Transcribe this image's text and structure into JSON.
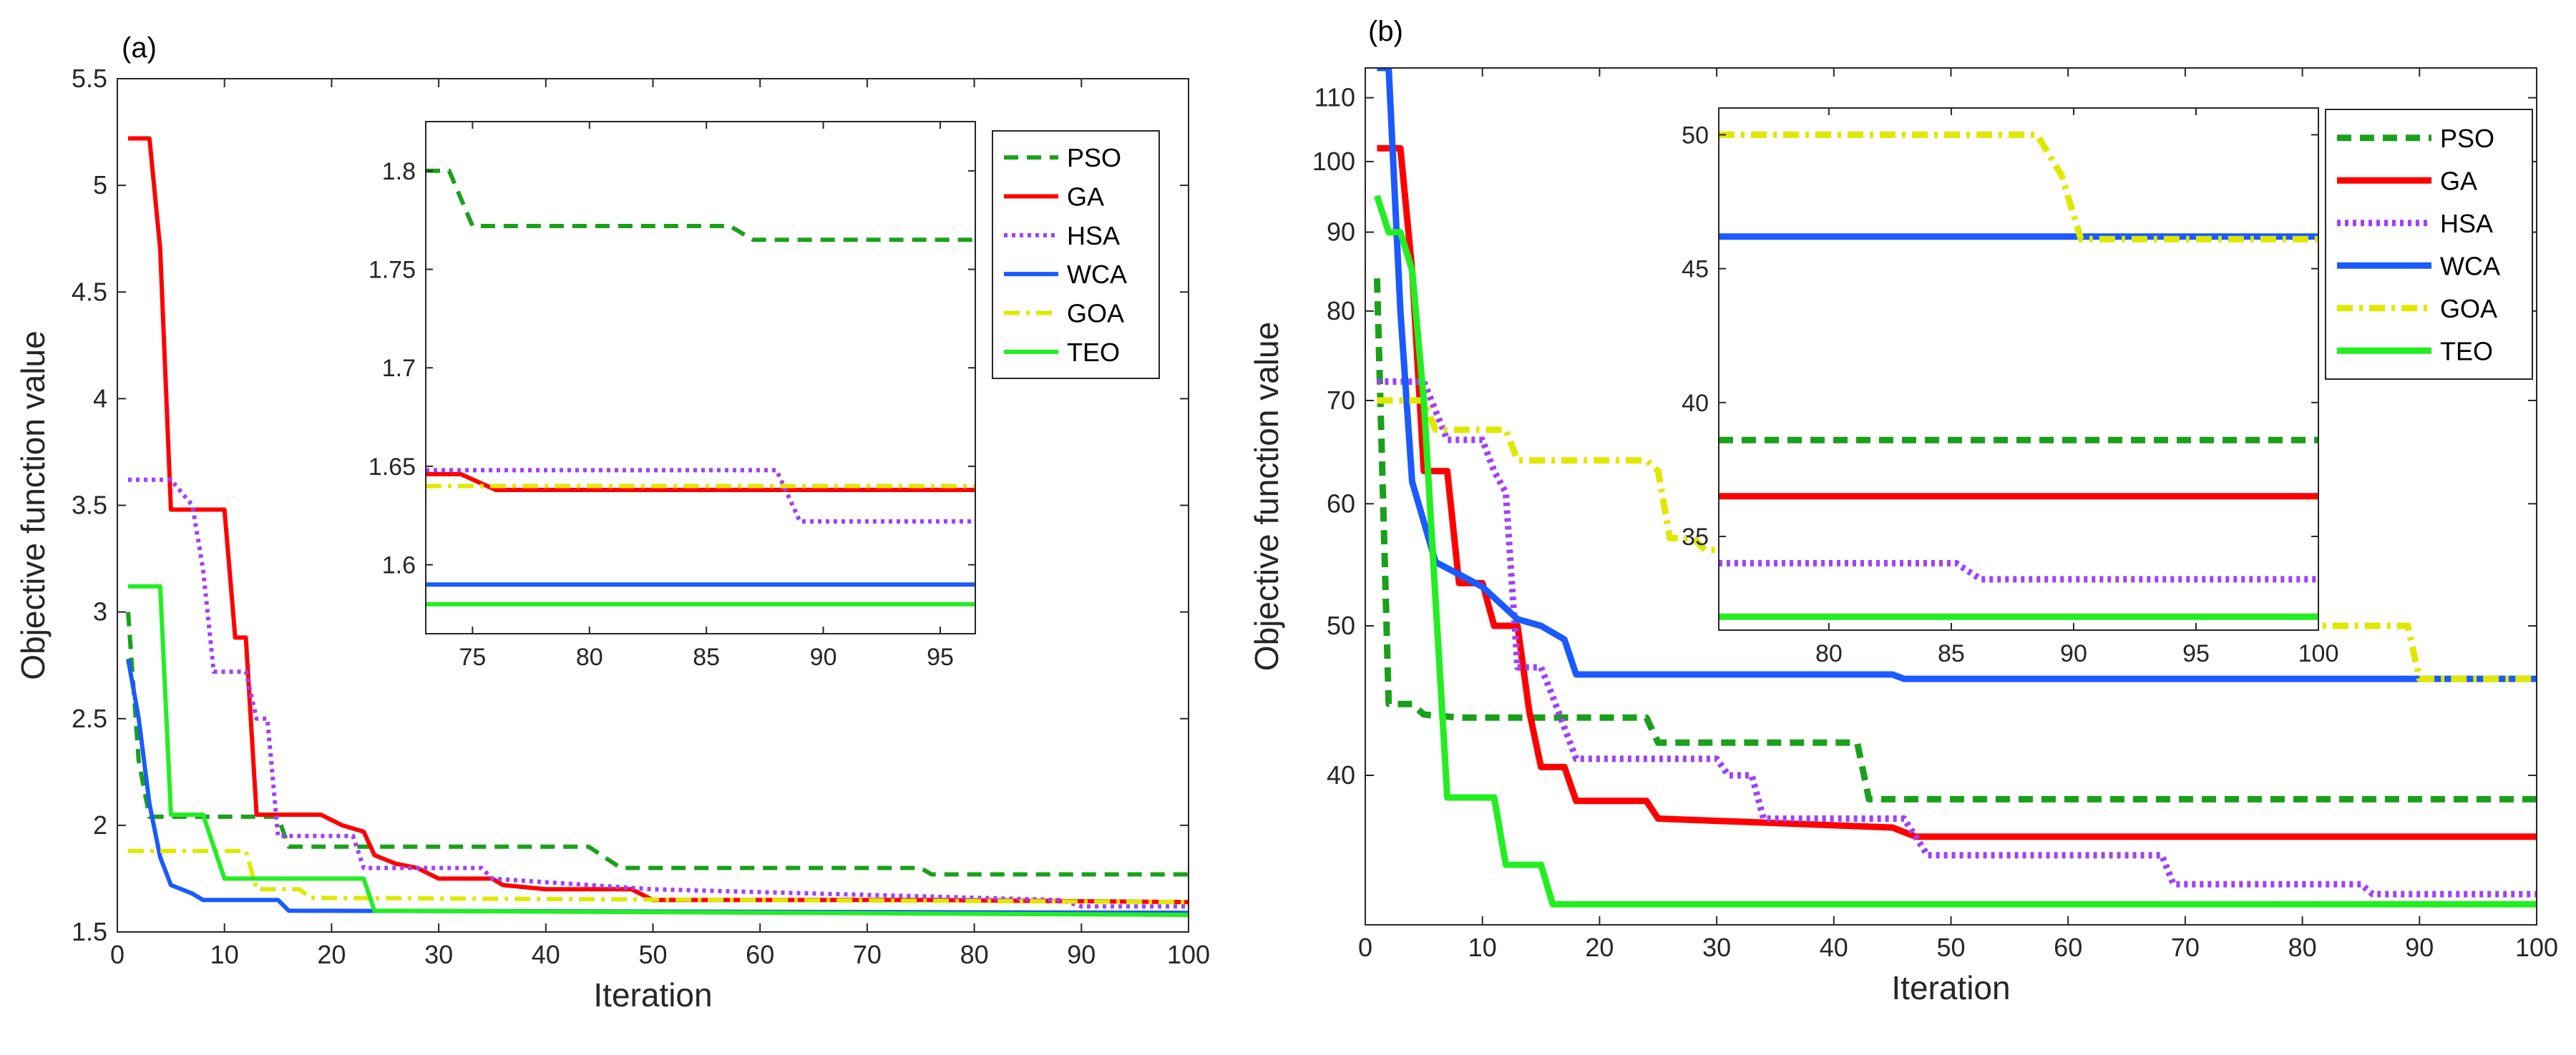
{
  "chart_data": [
    {
      "panel_label": "(a)",
      "type": "line",
      "xlabel": "Iteration",
      "ylabel": "Objective function value",
      "xlim": [
        0,
        100
      ],
      "ylim": [
        1.5,
        5.5
      ],
      "xticks": [
        0,
        10,
        20,
        30,
        40,
        50,
        60,
        70,
        80,
        90,
        100
      ],
      "yticks": [
        1.5,
        2,
        2.5,
        3,
        3.5,
        4,
        4.5,
        5,
        5.5
      ],
      "ytick_labels": [
        "1.5",
        "2",
        "2.5",
        "3",
        "3.5",
        "4",
        "4.5",
        "5",
        "5.5"
      ],
      "grid": false,
      "legend_position": "top-right",
      "series": [
        {
          "name": "PSO",
          "color": "#1aa01a",
          "dash": "dashed",
          "points": [
            [
              1,
              3.0
            ],
            [
              2,
              2.3
            ],
            [
              3,
              2.04
            ],
            [
              15,
              2.04
            ],
            [
              16,
              1.9
            ],
            [
              44,
              1.9
            ],
            [
              47,
              1.8
            ],
            [
              75,
              1.8
            ],
            [
              76,
              1.77
            ],
            [
              100,
              1.77
            ]
          ]
        },
        {
          "name": "GA",
          "color": "#ff0000",
          "dash": "solid",
          "points": [
            [
              1,
              5.22
            ],
            [
              3,
              5.22
            ],
            [
              4,
              4.7
            ],
            [
              5,
              3.48
            ],
            [
              10,
              3.48
            ],
            [
              11,
              2.88
            ],
            [
              12,
              2.88
            ],
            [
              13,
              2.05
            ],
            [
              19,
              2.05
            ],
            [
              21,
              2.0
            ],
            [
              23,
              1.97
            ],
            [
              24,
              1.86
            ],
            [
              26,
              1.82
            ],
            [
              28,
              1.8
            ],
            [
              30,
              1.75
            ],
            [
              35,
              1.75
            ],
            [
              36,
              1.72
            ],
            [
              40,
              1.7
            ],
            [
              48,
              1.7
            ],
            [
              50,
              1.65
            ],
            [
              76,
              1.65
            ],
            [
              100,
              1.64
            ]
          ]
        },
        {
          "name": "HSA",
          "color": "#a040ff",
          "dash": "dotted",
          "points": [
            [
              1,
              3.62
            ],
            [
              5,
              3.62
            ],
            [
              7,
              3.5
            ],
            [
              8,
              3.2
            ],
            [
              9,
              2.72
            ],
            [
              12,
              2.72
            ],
            [
              13,
              2.5
            ],
            [
              14,
              2.5
            ],
            [
              15,
              1.95
            ],
            [
              22,
              1.95
            ],
            [
              23,
              1.8
            ],
            [
              34,
              1.8
            ],
            [
              35,
              1.75
            ],
            [
              50,
              1.7
            ],
            [
              88,
              1.65
            ],
            [
              90,
              1.62
            ],
            [
              100,
              1.62
            ]
          ]
        },
        {
          "name": "WCA",
          "color": "#1a5aff",
          "dash": "solid",
          "points": [
            [
              1,
              2.78
            ],
            [
              2,
              2.5
            ],
            [
              3,
              2.1
            ],
            [
              4,
              1.85
            ],
            [
              5,
              1.72
            ],
            [
              7,
              1.68
            ],
            [
              8,
              1.65
            ],
            [
              15,
              1.65
            ],
            [
              16,
              1.6
            ],
            [
              100,
              1.59
            ]
          ]
        },
        {
          "name": "GOA",
          "color": "#e0e800",
          "dash": "dashdot",
          "points": [
            [
              1,
              1.88
            ],
            [
              12,
              1.88
            ],
            [
              13,
              1.7
            ],
            [
              17,
              1.7
            ],
            [
              18,
              1.66
            ],
            [
              100,
              1.64
            ]
          ]
        },
        {
          "name": "TEO",
          "color": "#22ee22",
          "dash": "solid",
          "points": [
            [
              1,
              3.12
            ],
            [
              4,
              3.12
            ],
            [
              5,
              2.05
            ],
            [
              8,
              2.05
            ],
            [
              9,
              1.9
            ],
            [
              10,
              1.75
            ],
            [
              23,
              1.75
            ],
            [
              24,
              1.6
            ],
            [
              100,
              1.58
            ]
          ]
        }
      ],
      "inset": {
        "xlim": [
          73,
          96.5
        ],
        "ylim": [
          1.565,
          1.825
        ],
        "xticks": [
          75,
          80,
          85,
          90,
          95
        ],
        "yticks": [
          1.6,
          1.65,
          1.7,
          1.75,
          1.8
        ],
        "ytick_labels": [
          "1.6",
          "1.65",
          "1.7",
          "1.75",
          "1.8"
        ],
        "series": [
          {
            "name": "PSO",
            "points": [
              [
                73,
                1.8
              ],
              [
                74,
                1.8
              ],
              [
                75,
                1.772
              ],
              [
                86,
                1.772
              ],
              [
                87,
                1.765
              ],
              [
                96.5,
                1.765
              ]
            ]
          },
          {
            "name": "GA",
            "points": [
              [
                73,
                1.646
              ],
              [
                74.5,
                1.646
              ],
              [
                76,
                1.638
              ],
              [
                96.5,
                1.638
              ]
            ]
          },
          {
            "name": "HSA",
            "points": [
              [
                73,
                1.648
              ],
              [
                88,
                1.648
              ],
              [
                89,
                1.622
              ],
              [
                96.5,
                1.622
              ]
            ]
          },
          {
            "name": "WCA",
            "points": [
              [
                73,
                1.59
              ],
              [
                96.5,
                1.59
              ]
            ]
          },
          {
            "name": "GOA",
            "points": [
              [
                73,
                1.64
              ],
              [
                96.5,
                1.64
              ]
            ]
          },
          {
            "name": "TEO",
            "points": [
              [
                73,
                1.58
              ],
              [
                96.5,
                1.58
              ]
            ]
          }
        ]
      }
    },
    {
      "panel_label": "(b)",
      "type": "line",
      "xlabel": "Iteration",
      "ylabel": "Objective function value",
      "xlim": [
        0,
        100
      ],
      "ylim": [
        32,
        115
      ],
      "yscale": "log",
      "xticks": [
        0,
        10,
        20,
        30,
        40,
        50,
        60,
        70,
        80,
        90,
        100
      ],
      "yticks": [
        40,
        50,
        60,
        70,
        80,
        90,
        100,
        110
      ],
      "ytick_labels": [
        "40",
        "50",
        "60",
        "70",
        "80",
        "90",
        "100",
        "110"
      ],
      "grid": false,
      "legend_position": "top-right",
      "series": [
        {
          "name": "PSO",
          "color": "#1aa01a",
          "dash": "dashed",
          "points": [
            [
              1,
              84
            ],
            [
              2,
              44.5
            ],
            [
              4,
              44.5
            ],
            [
              5,
              43.8
            ],
            [
              8,
              43.6
            ],
            [
              24,
              43.6
            ],
            [
              25,
              42
            ],
            [
              42,
              42
            ],
            [
              43,
              38.6
            ],
            [
              100,
              38.6
            ]
          ]
        },
        {
          "name": "GA",
          "color": "#ff0000",
          "dash": "solid",
          "points": [
            [
              1,
              102
            ],
            [
              3,
              102
            ],
            [
              4,
              85
            ],
            [
              5,
              63
            ],
            [
              7,
              63
            ],
            [
              8,
              53.3
            ],
            [
              10,
              53.3
            ],
            [
              11,
              50
            ],
            [
              13,
              50
            ],
            [
              14,
              44
            ],
            [
              15,
              40.5
            ],
            [
              17,
              40.5
            ],
            [
              18,
              38.5
            ],
            [
              24,
              38.5
            ],
            [
              25,
              37.5
            ],
            [
              45,
              37
            ],
            [
              47,
              36.5
            ],
            [
              100,
              36.5
            ]
          ]
        },
        {
          "name": "HSA",
          "color": "#a040ff",
          "dash": "dotted",
          "points": [
            [
              1,
              72
            ],
            [
              5,
              72
            ],
            [
              7,
              66
            ],
            [
              10,
              66
            ],
            [
              11,
              63
            ],
            [
              12,
              61
            ],
            [
              13,
              47
            ],
            [
              15,
              47
            ],
            [
              16,
              45
            ],
            [
              18,
              41
            ],
            [
              30,
              41
            ],
            [
              31,
              40
            ],
            [
              33,
              40
            ],
            [
              34,
              37.5
            ],
            [
              46,
              37.5
            ],
            [
              48,
              35.5
            ],
            [
              68,
              35.5
            ],
            [
              69,
              34
            ],
            [
              85,
              34
            ],
            [
              86,
              33.5
            ],
            [
              100,
              33.5
            ]
          ]
        },
        {
          "name": "WCA",
          "color": "#1a5aff",
          "dash": "solid",
          "points": [
            [
              1,
              115
            ],
            [
              2,
              115
            ],
            [
              3,
              80
            ],
            [
              4,
              62
            ],
            [
              6,
              55
            ],
            [
              8,
              54
            ],
            [
              10,
              53
            ],
            [
              13,
              50.5
            ],
            [
              15,
              50
            ],
            [
              17,
              49
            ],
            [
              18,
              46.5
            ],
            [
              45,
              46.5
            ],
            [
              46,
              46.2
            ],
            [
              100,
              46.2
            ]
          ]
        },
        {
          "name": "GOA",
          "color": "#e0e800",
          "dash": "dashdot",
          "points": [
            [
              1,
              70
            ],
            [
              5,
              70
            ],
            [
              6,
              67
            ],
            [
              12,
              67
            ],
            [
              13,
              64
            ],
            [
              24,
              64
            ],
            [
              25,
              63
            ],
            [
              26,
              57
            ],
            [
              28,
              57
            ],
            [
              29,
              56
            ],
            [
              50,
              56
            ],
            [
              51,
              50
            ],
            [
              89,
              50
            ],
            [
              90,
              46.2
            ],
            [
              100,
              46.2
            ]
          ]
        },
        {
          "name": "TEO",
          "color": "#22ee22",
          "dash": "solid",
          "points": [
            [
              1,
              95
            ],
            [
              2,
              90
            ],
            [
              3,
              90
            ],
            [
              4,
              85
            ],
            [
              5,
              70
            ],
            [
              6,
              52
            ],
            [
              7,
              38.7
            ],
            [
              11,
              38.7
            ],
            [
              12,
              35
            ],
            [
              15,
              35
            ],
            [
              16,
              33
            ],
            [
              100,
              33
            ]
          ]
        }
      ],
      "inset": {
        "xlim": [
          75.5,
          100
        ],
        "ylim": [
          31.5,
          51
        ],
        "xticks": [
          80,
          85,
          90,
          95,
          100
        ],
        "yticks": [
          35,
          40,
          45,
          50
        ],
        "ytick_labels": [
          "35",
          "40",
          "45",
          "50"
        ],
        "series": [
          {
            "name": "PSO",
            "points": [
              [
                75.5,
                38.6
              ],
              [
                100,
                38.6
              ]
            ]
          },
          {
            "name": "GA",
            "points": [
              [
                75.5,
                36.5
              ],
              [
                100,
                36.5
              ]
            ]
          },
          {
            "name": "HSA",
            "points": [
              [
                75.5,
                34
              ],
              [
                85.2,
                34
              ],
              [
                86.2,
                33.4
              ],
              [
                100,
                33.4
              ]
            ]
          },
          {
            "name": "WCA",
            "points": [
              [
                75.5,
                46.2
              ],
              [
                100,
                46.2
              ]
            ]
          },
          {
            "name": "GOA",
            "points": [
              [
                75.5,
                50
              ],
              [
                88.5,
                50
              ],
              [
                89.5,
                48.5
              ],
              [
                90.3,
                46.1
              ],
              [
                100,
                46.1
              ]
            ]
          },
          {
            "name": "TEO",
            "points": [
              [
                75.5,
                32
              ],
              [
                100,
                32
              ]
            ]
          }
        ]
      }
    }
  ]
}
